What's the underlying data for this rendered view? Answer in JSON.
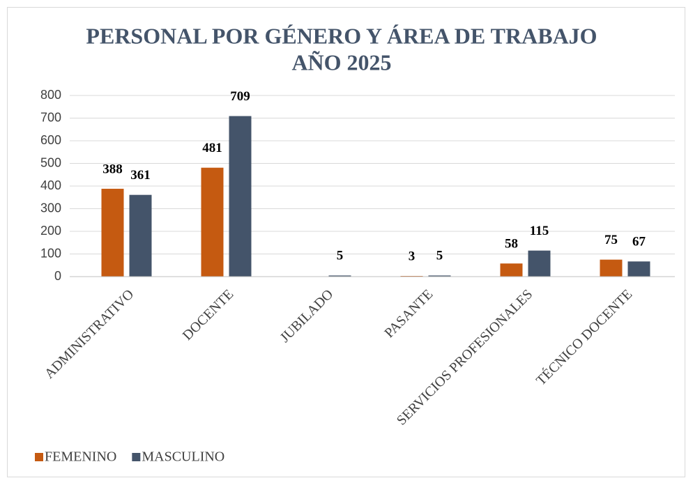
{
  "chart_data": {
    "type": "bar",
    "title": [
      "PERSONAL POR GÉNERO Y ÁREA DE TRABAJO",
      "AÑO 2025"
    ],
    "categories": [
      "ADMINISTRATIVO",
      "DOCENTE",
      "JUBILADO",
      "PASANTE",
      "SERVICIOS PROFESIONALES",
      "TÉCNICO DOCENTE"
    ],
    "series": [
      {
        "name": "FEMENINO",
        "color": "#c55a11",
        "values": [
          388,
          481,
          null,
          3,
          58,
          75
        ]
      },
      {
        "name": "MASCULINO",
        "color": "#44546a",
        "values": [
          361,
          709,
          5,
          5,
          115,
          67
        ]
      }
    ],
    "ylim": [
      0,
      800
    ],
    "yticks": [
      0,
      100,
      200,
      300,
      400,
      500,
      600,
      700,
      800
    ],
    "grid": true,
    "legend": "bottom-left"
  }
}
